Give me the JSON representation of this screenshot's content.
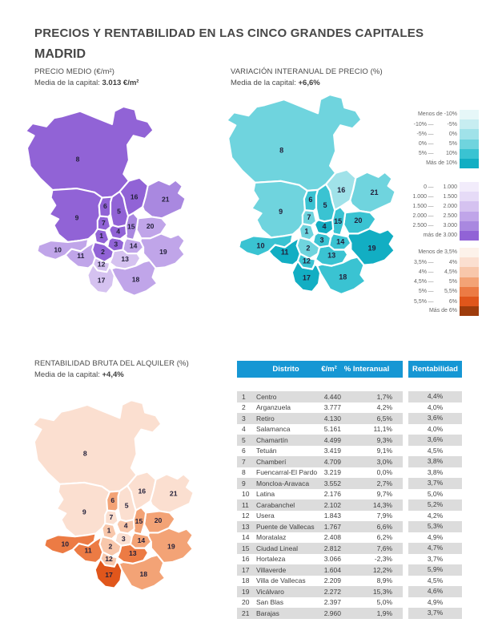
{
  "page": {
    "title": "PRECIOS Y RENTABILIDAD EN LAS CINCO GRANDES CAPITALES",
    "city": "MADRID"
  },
  "sections": {
    "price": {
      "title": "PRECIO MEDIO (€/m²)",
      "avg_label": "Media de la capital: ",
      "avg_value": "3.013 €/m²"
    },
    "variation": {
      "title": "VARIACIÓN INTERANUAL DE PRECIO (%)",
      "avg_label": "Media de la capital: ",
      "avg_value": "+6,6%"
    },
    "yield": {
      "title": "RENTABILIDAD BRUTA DEL ALQUILER (%)",
      "avg_label": "Media de la capital: ",
      "avg_value": "+4,4%"
    }
  },
  "legends": {
    "variation": {
      "rows": [
        {
          "text": "Menos de -10%"
        },
        {
          "left": "-10%",
          "right": "-5%"
        },
        {
          "left": "-5%",
          "right": "0%"
        },
        {
          "left": "0%",
          "right": "5%"
        },
        {
          "left": "5%",
          "right": "10%"
        },
        {
          "text": "Más de 10%"
        }
      ],
      "colors": [
        "#e6f7f8",
        "#c7edf1",
        "#a0e2e9",
        "#6fd4de",
        "#3ac3d2",
        "#12aec3"
      ]
    },
    "price": {
      "rows": [
        {
          "left": "0",
          "right": "1.000"
        },
        {
          "left": "1.000",
          "right": "1.500"
        },
        {
          "left": "1.500",
          "right": "2.000"
        },
        {
          "left": "2.000",
          "right": "2.500"
        },
        {
          "left": "2.500",
          "right": "3.000"
        },
        {
          "text": "más de 3.000"
        }
      ],
      "colors": [
        "#f2ecfb",
        "#e6dbf7",
        "#d5c2f0",
        "#c0a5e9",
        "#a988e0",
        "#9163d6"
      ]
    },
    "yield": {
      "rows": [
        {
          "text": "Menos de 3,5%"
        },
        {
          "left": "3,5%",
          "right": "4%"
        },
        {
          "left": "4%",
          "right": "4,5%"
        },
        {
          "left": "4,5%",
          "right": "5%"
        },
        {
          "left": "5%",
          "right": "5,5%"
        },
        {
          "left": "5,5%",
          "right": "6%"
        },
        {
          "text": "Más de 6%"
        }
      ],
      "colors": [
        "#fdf2ea",
        "#fbdfd0",
        "#f8c7ab",
        "#f3a376",
        "#ec7b44",
        "#e0561b",
        "#9e3c0c"
      ]
    }
  },
  "table": {
    "headers": {
      "district": "Distrito",
      "price": "€/m²",
      "interannual": "% Interanual",
      "yield": "Rentabilidad"
    }
  },
  "districts": [
    {
      "num": 1,
      "name": "Centro",
      "price": "4.440",
      "interannual": "1,7%",
      "yield": "4,4%",
      "band_price": 5,
      "band_variation": 3,
      "band_yield": 2
    },
    {
      "num": 2,
      "name": "Arganzuela",
      "price": "3.777",
      "interannual": "4,2%",
      "yield": "4,0%",
      "band_price": 5,
      "band_variation": 3,
      "band_yield": 2
    },
    {
      "num": 3,
      "name": "Retiro",
      "price": "4.130",
      "interannual": "6,5%",
      "yield": "3,6%",
      "band_price": 5,
      "band_variation": 4,
      "band_yield": 1
    },
    {
      "num": 4,
      "name": "Salamanca",
      "price": "5.161",
      "interannual": "11,1%",
      "yield": "4,0%",
      "band_price": 5,
      "band_variation": 5,
      "band_yield": 2
    },
    {
      "num": 5,
      "name": "Chamartín",
      "price": "4.499",
      "interannual": "9,3%",
      "yield": "3,6%",
      "band_price": 5,
      "band_variation": 4,
      "band_yield": 1
    },
    {
      "num": 6,
      "name": "Tetuán",
      "price": "3.419",
      "interannual": "9,1%",
      "yield": "4,5%",
      "band_price": 5,
      "band_variation": 4,
      "band_yield": 3
    },
    {
      "num": 7,
      "name": "Chamberí",
      "price": "4.709",
      "interannual": "3,0%",
      "yield": "3,8%",
      "band_price": 5,
      "band_variation": 3,
      "band_yield": 1
    },
    {
      "num": 8,
      "name": "Fuencarral-El Pardo",
      "price": "3.219",
      "interannual": "0,0%",
      "yield": "3,8%",
      "band_price": 5,
      "band_variation": 3,
      "band_yield": 1
    },
    {
      "num": 9,
      "name": "Moncloa-Aravaca",
      "price": "3.552",
      "interannual": "2,7%",
      "yield": "3,7%",
      "band_price": 5,
      "band_variation": 3,
      "band_yield": 1
    },
    {
      "num": 10,
      "name": "Latina",
      "price": "2.176",
      "interannual": "9,7%",
      "yield": "5,0%",
      "band_price": 3,
      "band_variation": 4,
      "band_yield": 4
    },
    {
      "num": 11,
      "name": "Carabanchel",
      "price": "2.102",
      "interannual": "14,3%",
      "yield": "5,2%",
      "band_price": 3,
      "band_variation": 5,
      "band_yield": 4
    },
    {
      "num": 12,
      "name": "Usera",
      "price": "1.843",
      "interannual": "7,9%",
      "yield": "4,2%",
      "band_price": 2,
      "band_variation": 4,
      "band_yield": 2
    },
    {
      "num": 13,
      "name": "Puente de Vallecas",
      "price": "1.767",
      "interannual": "6,6%",
      "yield": "5,3%",
      "band_price": 2,
      "band_variation": 4,
      "band_yield": 4
    },
    {
      "num": 14,
      "name": "Moratalaz",
      "price": "2.408",
      "interannual": "6,2%",
      "yield": "4,9%",
      "band_price": 3,
      "band_variation": 4,
      "band_yield": 3
    },
    {
      "num": 15,
      "name": "Ciudad Lineal",
      "price": "2.812",
      "interannual": "7,6%",
      "yield": "4,7%",
      "band_price": 4,
      "band_variation": 4,
      "band_yield": 3
    },
    {
      "num": 16,
      "name": "Hortaleza",
      "price": "3.066",
      "interannual": "-2,3%",
      "yield": "3,7%",
      "band_price": 5,
      "band_variation": 2,
      "band_yield": 1
    },
    {
      "num": 17,
      "name": "Villaverde",
      "price": "1.604",
      "interannual": "12,2%",
      "yield": "5,9%",
      "band_price": 2,
      "band_variation": 5,
      "band_yield": 5
    },
    {
      "num": 18,
      "name": "Villa de Vallecas",
      "price": "2.209",
      "interannual": "8,9%",
      "yield": "4,5%",
      "band_price": 3,
      "band_variation": 4,
      "band_yield": 3
    },
    {
      "num": 19,
      "name": "Vicálvaro",
      "price": "2.272",
      "interannual": "15,3%",
      "yield": "4,6%",
      "band_price": 3,
      "band_variation": 5,
      "band_yield": 3
    },
    {
      "num": 20,
      "name": "San Blas",
      "price": "2.397",
      "interannual": "5,0%",
      "yield": "4,9%",
      "band_price": 3,
      "band_variation": 4,
      "band_yield": 3
    },
    {
      "num": 21,
      "name": "Barajas",
      "price": "2.960",
      "interannual": "1,9%",
      "yield": "3,7%",
      "band_price": 4,
      "band_variation": 3,
      "band_yield": 1
    }
  ],
  "chart_data": {
    "type": "table",
    "title": "PRECIOS Y RENTABILIDAD EN LAS CINCO GRANDES CAPITALES — MADRID",
    "columns": [
      "Distrito",
      "€/m²",
      "% Interanual",
      "Rentabilidad"
    ],
    "rows": [
      [
        1,
        "Centro",
        4440,
        1.7,
        4.4
      ],
      [
        2,
        "Arganzuela",
        3777,
        4.2,
        4.0
      ],
      [
        3,
        "Retiro",
        4130,
        6.5,
        3.6
      ],
      [
        4,
        "Salamanca",
        5161,
        11.1,
        4.0
      ],
      [
        5,
        "Chamartín",
        4499,
        9.3,
        3.6
      ],
      [
        6,
        "Tetuán",
        3419,
        9.1,
        4.5
      ],
      [
        7,
        "Chamberí",
        4709,
        3.0,
        3.8
      ],
      [
        8,
        "Fuencarral-El Pardo",
        3219,
        0.0,
        3.8
      ],
      [
        9,
        "Moncloa-Aravaca",
        3552,
        2.7,
        3.7
      ],
      [
        10,
        "Latina",
        2176,
        9.7,
        5.0
      ],
      [
        11,
        "Carabanchel",
        2102,
        14.3,
        5.2
      ],
      [
        12,
        "Usera",
        1843,
        7.9,
        4.2
      ],
      [
        13,
        "Puente de Vallecas",
        1767,
        6.6,
        5.3
      ],
      [
        14,
        "Moratalaz",
        2408,
        6.2,
        4.9
      ],
      [
        15,
        "Ciudad Lineal",
        2812,
        7.6,
        4.7
      ],
      [
        16,
        "Hortaleza",
        3066,
        -2.3,
        3.7
      ],
      [
        17,
        "Villaverde",
        1604,
        12.2,
        5.9
      ],
      [
        18,
        "Villa de Vallecas",
        2209,
        8.9,
        4.5
      ],
      [
        19,
        "Vicálvaro",
        2272,
        15.3,
        4.6
      ],
      [
        20,
        "San Blas",
        2397,
        5.0,
        4.9
      ],
      [
        21,
        "Barajas",
        2960,
        1.9,
        3.7
      ]
    ],
    "maps": [
      {
        "metric": "Precio medio (€/m²)",
        "capital_average": "3.013 €/m²"
      },
      {
        "metric": "Variación interanual de precio (%)",
        "capital_average": "+6,6%"
      },
      {
        "metric": "Rentabilidad bruta del alquiler (%)",
        "capital_average": "+4,4%"
      }
    ]
  }
}
